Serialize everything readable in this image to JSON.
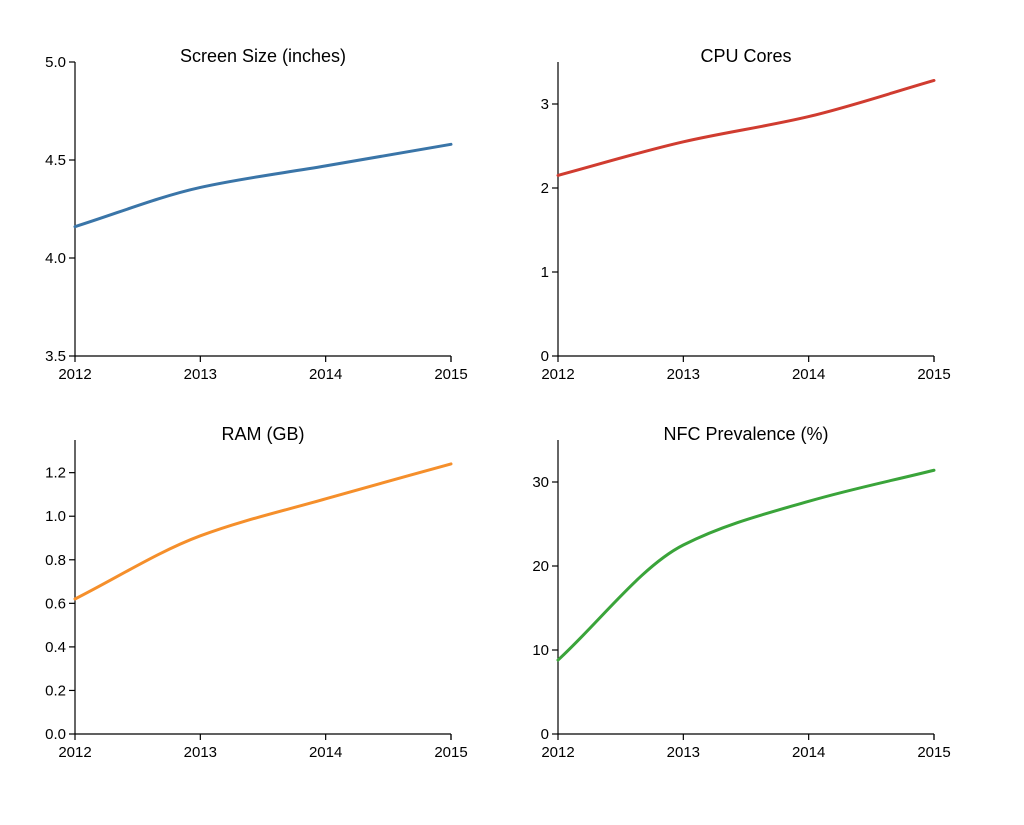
{
  "chart_data": [
    {
      "type": "line",
      "title": "Screen Size (inches)",
      "color": "#3a75a8",
      "x": [
        2012,
        2013,
        2014,
        2015
      ],
      "series": [
        {
          "values": [
            4.16,
            4.36,
            4.47,
            4.58
          ]
        }
      ],
      "xlim": [
        2012,
        2015
      ],
      "ylim": [
        3.5,
        5.0
      ],
      "xticks": [
        "2012",
        "2013",
        "2014",
        "2015"
      ],
      "yticks": [
        "3.5",
        "4.0",
        "4.5",
        "5.0"
      ],
      "grid": false
    },
    {
      "type": "line",
      "title": "CPU Cores",
      "color": "#d03c30",
      "x": [
        2012,
        2013,
        2014,
        2015
      ],
      "series": [
        {
          "values": [
            2.15,
            2.55,
            2.85,
            3.28
          ]
        }
      ],
      "xlim": [
        2012,
        2015
      ],
      "ylim": [
        0,
        3.5
      ],
      "xticks": [
        "2012",
        "2013",
        "2014",
        "2015"
      ],
      "yticks": [
        "0",
        "1",
        "2",
        "3"
      ],
      "grid": false
    },
    {
      "type": "line",
      "title": "RAM (GB)",
      "color": "#f58f2b",
      "x": [
        2012,
        2013,
        2014,
        2015
      ],
      "series": [
        {
          "values": [
            0.62,
            0.91,
            1.08,
            1.24
          ]
        }
      ],
      "xlim": [
        2012,
        2015
      ],
      "ylim": [
        0.0,
        1.35
      ],
      "xticks": [
        "2012",
        "2013",
        "2014",
        "2015"
      ],
      "yticks": [
        "0.0",
        "0.2",
        "0.4",
        "0.6",
        "0.8",
        "1.0",
        "1.2"
      ],
      "grid": false
    },
    {
      "type": "line",
      "title": "NFC Prevalence (%)",
      "color": "#3aa43a",
      "x": [
        2012,
        2013,
        2014,
        2015
      ],
      "series": [
        {
          "values": [
            8.8,
            22.5,
            27.7,
            31.4
          ]
        }
      ],
      "xlim": [
        2012,
        2015
      ],
      "ylim": [
        0,
        35
      ],
      "xticks": [
        "2012",
        "2013",
        "2014",
        "2015"
      ],
      "yticks": [
        "0",
        "10",
        "20",
        "30"
      ],
      "grid": false
    }
  ]
}
